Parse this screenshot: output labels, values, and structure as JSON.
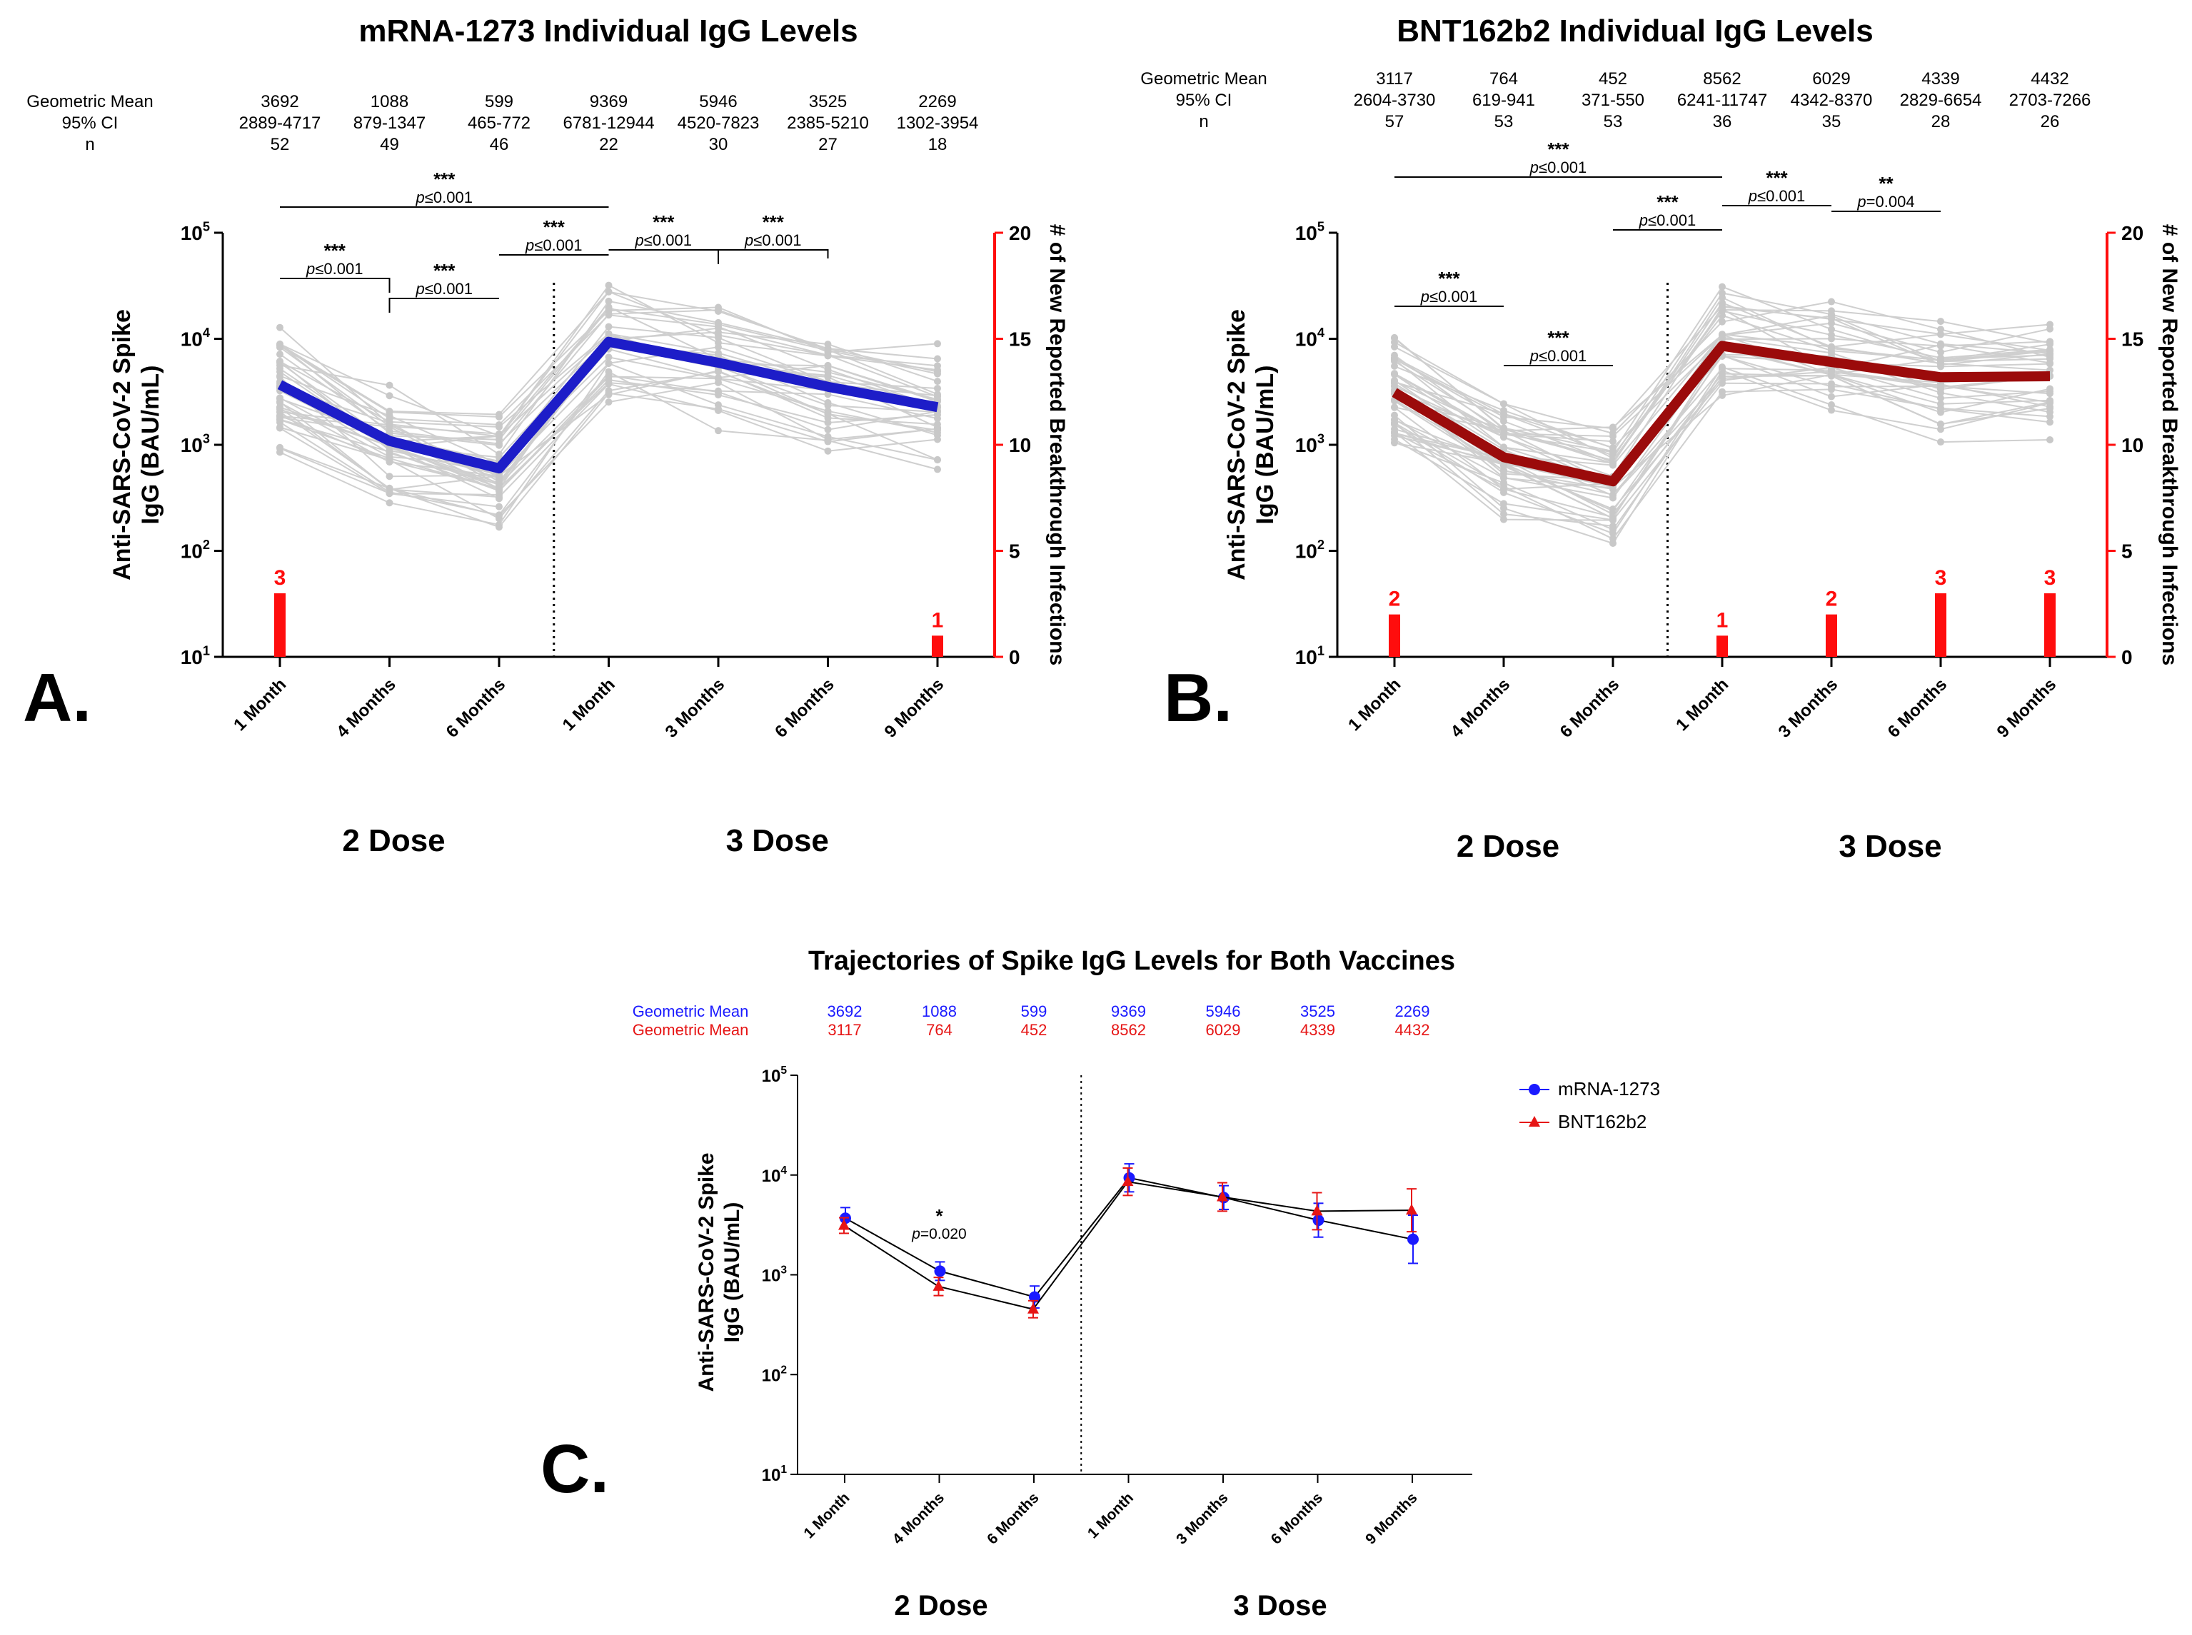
{
  "chart_data": [
    {
      "id": "A",
      "panel_letter": "A.",
      "type": "line",
      "title": "mRNA-1273 Individual IgG Levels",
      "line_color": "#1d1dc8",
      "bar_color": "#ff0d0d",
      "categories": [
        "1 Month",
        "4 Months",
        "6 Months",
        "1 Month",
        "3 Months",
        "6 Months",
        "9 Months"
      ],
      "groups": [
        "2 Dose",
        "3 Dose"
      ],
      "stats_labels": [
        "Geometric Mean",
        "95% CI",
        "n"
      ],
      "geometric_mean": [
        "3692",
        "1088",
        "599",
        "9369",
        "5946",
        "3525",
        "2269"
      ],
      "ci95": [
        "2889-4717",
        "879-1347",
        "465-772",
        "6781-12944",
        "4520-7823",
        "2385-5210",
        "1302-3954"
      ],
      "n": [
        "52",
        "49",
        "46",
        "22",
        "30",
        "27",
        "18"
      ],
      "series": [
        {
          "name": "Geometric Mean",
          "values": [
            3692,
            1088,
            599,
            9369,
            5946,
            3525,
            2269
          ]
        }
      ],
      "breakthrough_infections": [
        3,
        0,
        0,
        0,
        0,
        0,
        1
      ],
      "breakthrough_labels": [
        "3",
        "",
        "",
        "",
        "",
        "",
        "1"
      ],
      "ylabel": "Anti-SARS-CoV-2 Spike IgG (BAU/mL)",
      "y2label": "# of New Reported Breakthrough Infections",
      "yscale": "log",
      "ylim": [
        10,
        100000
      ],
      "y_ticks": [
        "10",
        "10",
        "10",
        "10",
        "10"
      ],
      "y_tick_exponents": [
        "1",
        "2",
        "3",
        "4",
        "5"
      ],
      "y2lim": [
        0,
        20
      ],
      "y2_ticks": [
        "0",
        "5",
        "10",
        "15",
        "20"
      ],
      "comparisons": [
        {
          "from": 0,
          "to": 1,
          "stars": "***",
          "p": "≤0.001"
        },
        {
          "from": 1,
          "to": 2,
          "stars": "***",
          "p": "≤0.001"
        },
        {
          "from": 2,
          "to": 3,
          "stars": "***",
          "p": "≤0.001"
        },
        {
          "from": 0,
          "to": 3,
          "stars": "***",
          "p": "≤0.001"
        },
        {
          "from": 3,
          "to": 4,
          "stars": "***",
          "p": "≤0.001"
        },
        {
          "from": 4,
          "to": 5,
          "stars": "***",
          "p": "≤0.001"
        }
      ],
      "individual_trajectories_note": "grey lines show individual participants"
    },
    {
      "id": "B",
      "panel_letter": "B.",
      "type": "line",
      "title": "BNT162b2 Individual IgG Levels",
      "line_color": "#9b0b0b",
      "bar_color": "#ff0d0d",
      "categories": [
        "1 Month",
        "4 Months",
        "6 Months",
        "1 Month",
        "3 Months",
        "6 Months",
        "9 Months"
      ],
      "groups": [
        "2 Dose",
        "3 Dose"
      ],
      "stats_labels": [
        "Geometric Mean",
        "95% CI",
        "n"
      ],
      "geometric_mean": [
        "3117",
        "764",
        "452",
        "8562",
        "6029",
        "4339",
        "4432"
      ],
      "ci95": [
        "2604-3730",
        "619-941",
        "371-550",
        "6241-11747",
        "4342-8370",
        "2829-6654",
        "2703-7266"
      ],
      "n": [
        "57",
        "53",
        "53",
        "36",
        "35",
        "28",
        "26"
      ],
      "series": [
        {
          "name": "Geometric Mean",
          "values": [
            3117,
            764,
            452,
            8562,
            6029,
            4339,
            4432
          ]
        }
      ],
      "breakthrough_infections": [
        2,
        0,
        0,
        1,
        2,
        3,
        3
      ],
      "breakthrough_labels": [
        "2",
        "",
        "",
        "1",
        "2",
        "3",
        "3"
      ],
      "ylabel": "Anti-SARS-CoV-2 Spike IgG (BAU/mL)",
      "y2label": "# of New Reported Breakthrough Infections",
      "yscale": "log",
      "ylim": [
        10,
        100000
      ],
      "y_ticks": [
        "10",
        "10",
        "10",
        "10",
        "10"
      ],
      "y_tick_exponents": [
        "1",
        "2",
        "3",
        "4",
        "5"
      ],
      "y2lim": [
        0,
        20
      ],
      "y2_ticks": [
        "0",
        "5",
        "10",
        "15",
        "20"
      ],
      "comparisons": [
        {
          "from": 0,
          "to": 1,
          "stars": "***",
          "p": "≤0.001"
        },
        {
          "from": 1,
          "to": 2,
          "stars": "***",
          "p": "≤0.001"
        },
        {
          "from": 2,
          "to": 3,
          "stars": "***",
          "p": "≤0.001"
        },
        {
          "from": 0,
          "to": 3,
          "stars": "***",
          "p": "≤0.001"
        },
        {
          "from": 3,
          "to": 4,
          "stars": "***",
          "p": "≤0.001"
        },
        {
          "from": 4,
          "to": 5,
          "stars": "**",
          "p": "=0.004"
        }
      ],
      "individual_trajectories_note": "grey lines show individual participants"
    },
    {
      "id": "C",
      "panel_letter": "C.",
      "type": "line",
      "title": "Trajectories of Spike IgG Levels for Both Vaccines",
      "categories": [
        "1 Month",
        "4 Months",
        "6 Months",
        "1 Month",
        "3 Months",
        "6 Months",
        "9 Months"
      ],
      "groups": [
        "2 Dose",
        "3 Dose"
      ],
      "stats_labels": [
        "Geometric Mean",
        "Geometric Mean"
      ],
      "series": [
        {
          "name": "mRNA-1273",
          "color": "#1a1aff",
          "marker": "circle",
          "values": [
            3692,
            1088,
            599,
            9369,
            5946,
            3525,
            2269
          ],
          "labels": [
            "3692",
            "1088",
            "599",
            "9369",
            "5946",
            "3525",
            "2269"
          ],
          "ci_low": [
            2889,
            879,
            465,
            6781,
            4520,
            2385,
            1302
          ],
          "ci_high": [
            4717,
            1347,
            772,
            12944,
            7823,
            5210,
            3954
          ]
        },
        {
          "name": "BNT162b2",
          "color": "#e61515",
          "marker": "triangle",
          "values": [
            3117,
            764,
            452,
            8562,
            6029,
            4339,
            4432
          ],
          "labels": [
            "3117",
            "764",
            "452",
            "8562",
            "6029",
            "4339",
            "4432"
          ],
          "ci_low": [
            2604,
            619,
            371,
            6241,
            4342,
            2829,
            2703
          ],
          "ci_high": [
            3730,
            941,
            550,
            11747,
            8370,
            6654,
            7266
          ]
        }
      ],
      "ylabel": "Anti-SARS-CoV-2 Spike IgG (BAU/mL)",
      "yscale": "log",
      "ylim": [
        10,
        100000
      ],
      "y_ticks": [
        "10",
        "10",
        "10",
        "10",
        "10"
      ],
      "y_tick_exponents": [
        "1",
        "2",
        "3",
        "4",
        "5"
      ],
      "legend_position": "right",
      "annotation": {
        "index": 1,
        "stars": "*",
        "p": "=0.020"
      }
    }
  ]
}
